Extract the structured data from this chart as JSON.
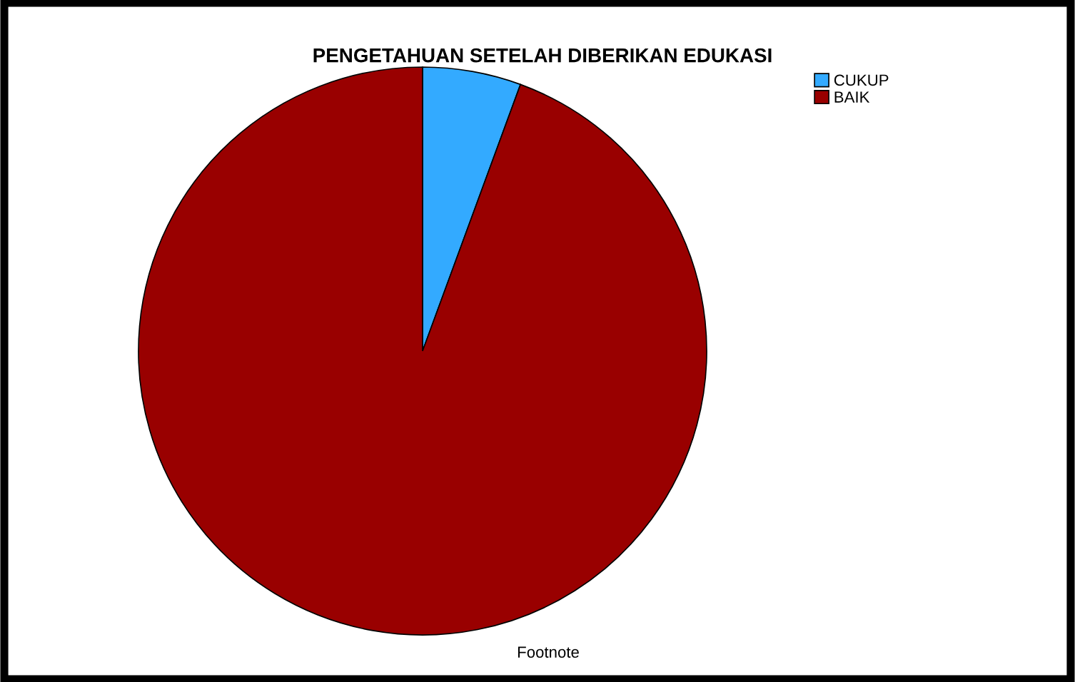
{
  "chart_data": {
    "type": "pie",
    "title": "PENGETAHUAN SETELAH DIBERIKAN EDUKASI",
    "categories": [
      "CUKUP",
      "BAIK"
    ],
    "values": [
      5.6,
      94.4
    ],
    "colors": [
      "#33aaff",
      "#990000"
    ],
    "legend": "top right",
    "annotations": [
      "Footnote"
    ]
  }
}
